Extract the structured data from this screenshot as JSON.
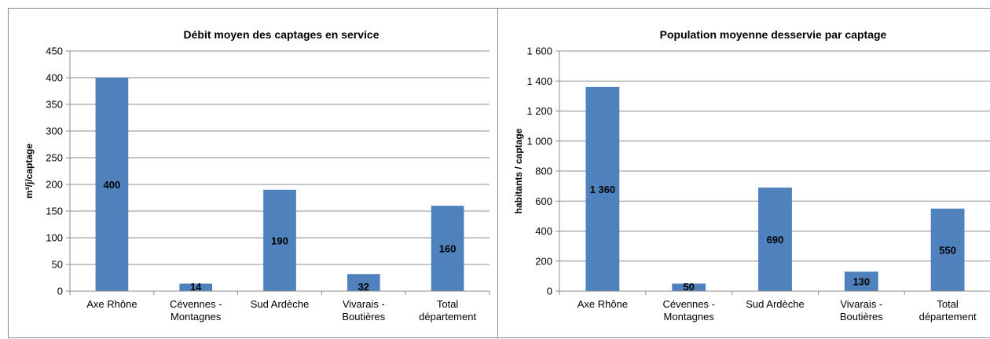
{
  "charts": [
    {
      "type": "bar",
      "title": "Débit moyen des captages en service",
      "ylabel": "m³/j/captage",
      "xlabel": "",
      "categories": [
        [
          "Axe Rhône"
        ],
        [
          "Cévennes -",
          "Montagnes"
        ],
        [
          "Sud Ardèche"
        ],
        [
          "Vivarais -",
          "Boutières"
        ],
        [
          "Total",
          "département"
        ]
      ],
      "values": [
        400,
        14,
        190,
        32,
        160
      ],
      "value_labels": [
        "400",
        "14",
        "190",
        "32",
        "160"
      ],
      "ylim": [
        0,
        450
      ],
      "yticks": [
        0,
        50,
        100,
        150,
        200,
        250,
        300,
        350,
        400,
        450
      ],
      "ytick_labels": [
        "0",
        "50",
        "100",
        "150",
        "200",
        "250",
        "300",
        "350",
        "400",
        "450"
      ],
      "grid": true,
      "bar_color": "#4f81bd"
    },
    {
      "type": "bar",
      "title": "Population moyenne desservie par captage",
      "ylabel": "habitants / captage",
      "xlabel": "",
      "categories": [
        [
          "Axe Rhône"
        ],
        [
          "Cévennes -",
          "Montagnes"
        ],
        [
          "Sud Ardèche"
        ],
        [
          "Vivarais -",
          "Boutières"
        ],
        [
          "Total",
          "département"
        ]
      ],
      "values": [
        1360,
        50,
        690,
        130,
        550
      ],
      "value_labels": [
        "1 360",
        "50",
        "690",
        "130",
        "550"
      ],
      "ylim": [
        0,
        1600
      ],
      "yticks": [
        0,
        200,
        400,
        600,
        800,
        1000,
        1200,
        1400,
        1600
      ],
      "ytick_labels": [
        "0",
        "200",
        "400",
        "600",
        "800",
        "1 000",
        "1 200",
        "1 400",
        "1 600"
      ],
      "grid": true,
      "bar_color": "#4f81bd"
    }
  ]
}
